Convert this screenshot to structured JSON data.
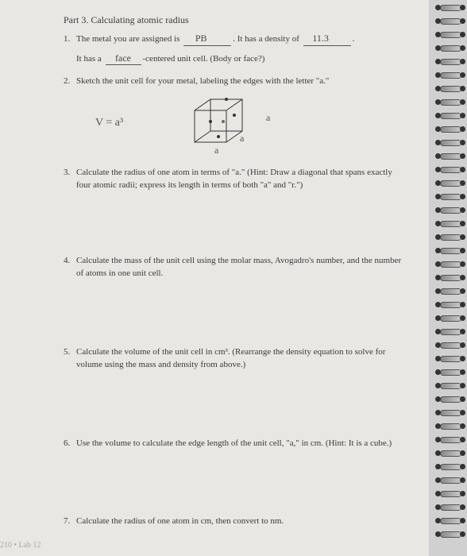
{
  "part_title": "Part 3. Calculating atomic radius",
  "q1": {
    "num": "1.",
    "text_a": "The metal you are assigned is ",
    "blank1": "PB",
    "text_b": ". It has a density of ",
    "blank2": "11.3",
    "text_c": ".",
    "line2_a": "It has a ",
    "blank3": "face",
    "line2_b": "-centered unit cell. (Body or face?)"
  },
  "q2": {
    "num": "2.",
    "text": "Sketch the unit cell for your metal, labeling the edges with the letter \"a.\""
  },
  "sketch": {
    "formula": "V = a³",
    "label_a1": "a",
    "label_a2": "a",
    "label_a3": "a"
  },
  "q3": {
    "num": "3.",
    "text": "Calculate the radius of one atom in terms of \"a.\" (Hint: Draw a diagonal that spans exactly four atomic radii; express its length in terms of both \"a\" and \"r.\")"
  },
  "q4": {
    "num": "4.",
    "text": "Calculate the mass of the unit cell using the molar mass, Avogadro's number, and the number of atoms in one unit cell."
  },
  "q5": {
    "num": "5.",
    "text": "Calculate the volume of the unit cell in cm³. (Rearrange the density equation to solve for volume using the mass and density from above.)"
  },
  "q6": {
    "num": "6.",
    "text": "Use the volume to calculate the edge length of the unit cell, \"a,\" in cm. (Hint: It is a cube.)"
  },
  "q7": {
    "num": "7.",
    "text": "Calculate the radius of one atom in cm, then convert to nm."
  },
  "footer": "210 • Lab 12"
}
